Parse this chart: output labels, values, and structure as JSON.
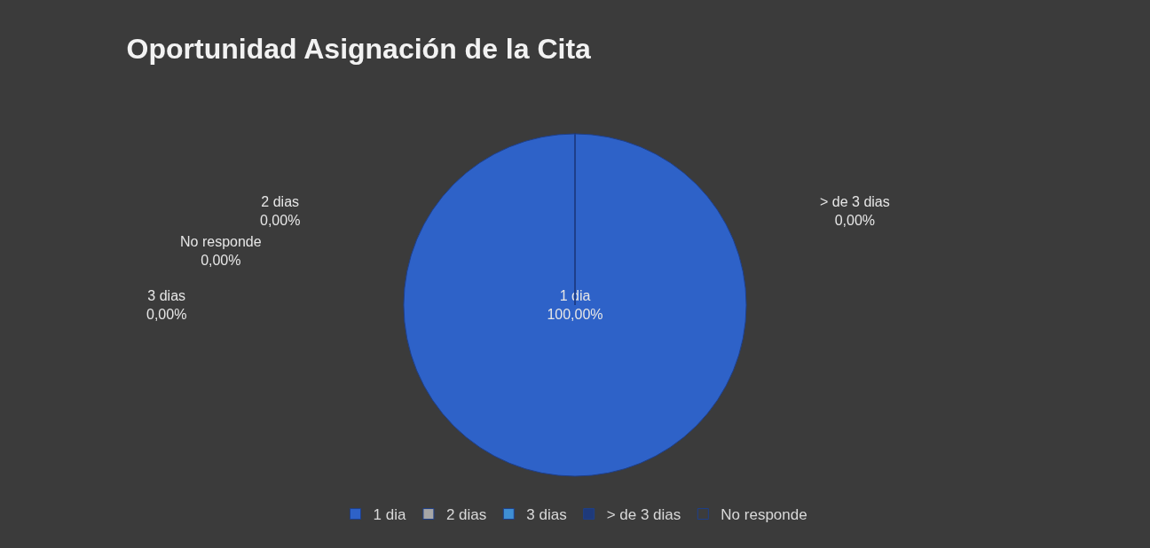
{
  "chart_data": {
    "type": "pie",
    "title": "Oportunidad Asignación de la Cita",
    "categories": [
      "1 dia",
      "2 dias",
      "3 dias",
      "> de 3 dias",
      "No responde"
    ],
    "values": [
      100,
      0,
      0,
      0,
      0
    ],
    "value_labels": [
      "100,00%",
      "0,00%",
      "0,00%",
      "0,00%",
      "0,00%"
    ],
    "colors": [
      "#2e62c8",
      "#a6a6a6",
      "#3f8fd4",
      "#1f3a7a",
      "#3c3c3c"
    ],
    "legend": "bottom"
  }
}
